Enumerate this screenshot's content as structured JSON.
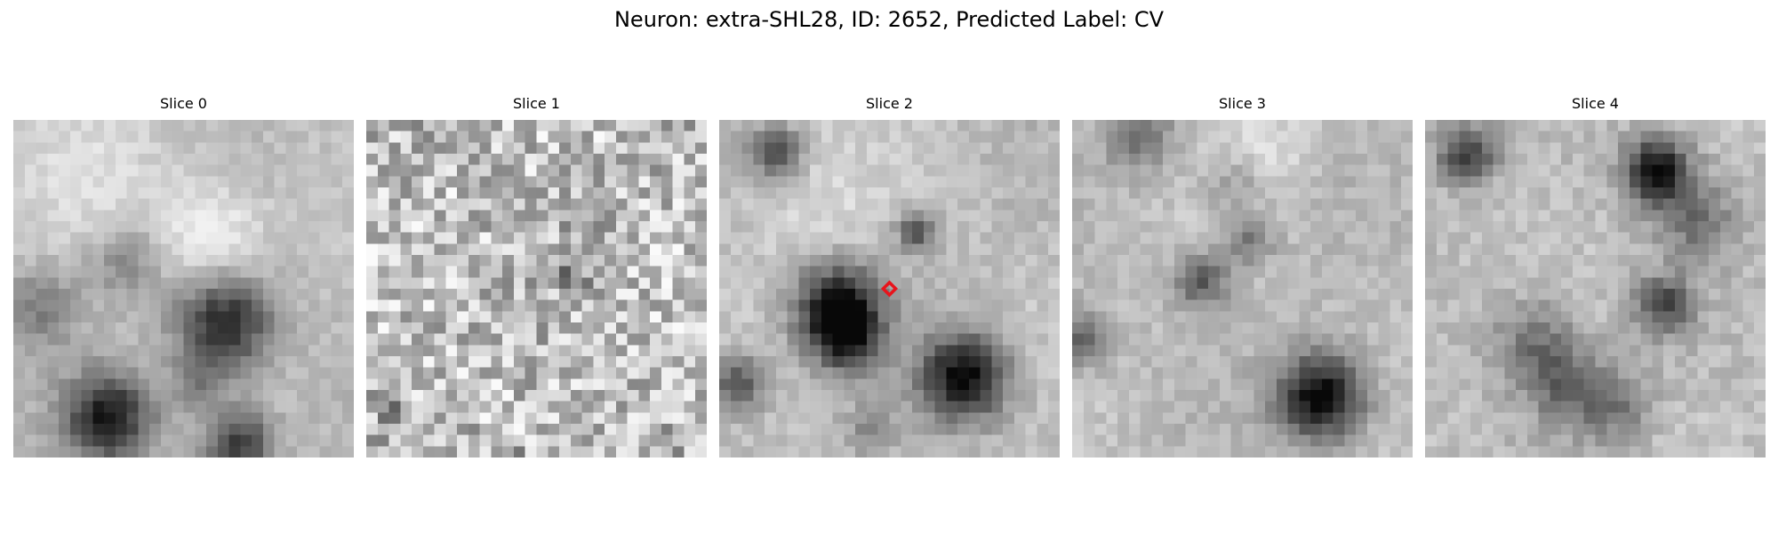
{
  "figure": {
    "title": "Neuron: extra-SHL28, ID: 2652, Predicted Label: CV"
  },
  "slices": [
    {
      "title": "Slice 0",
      "seed": 101,
      "noise": 14,
      "blobs": [
        [
          0.62,
          0.6,
          0.1,
          -155
        ],
        [
          0.28,
          0.88,
          0.09,
          -160
        ],
        [
          0.66,
          0.96,
          0.07,
          -140
        ],
        [
          0.33,
          0.42,
          0.08,
          -60
        ],
        [
          0.08,
          0.55,
          0.08,
          -65
        ],
        [
          0.55,
          0.78,
          0.06,
          -55
        ],
        [
          0.58,
          0.35,
          0.12,
          55
        ],
        [
          0.25,
          0.15,
          0.2,
          25
        ]
      ]
    },
    {
      "title": "Slice 1",
      "seed": 202,
      "noise": 60,
      "blobs": [
        [
          0.6,
          0.47,
          0.03,
          -80
        ],
        [
          0.07,
          0.85,
          0.03,
          -70
        ],
        [
          0.45,
          0.98,
          0.02,
          -70
        ]
      ]
    },
    {
      "title": "Slice 2",
      "seed": 303,
      "noise": 16,
      "marker": [
        0.5,
        0.5
      ],
      "blobs": [
        [
          0.35,
          0.55,
          0.09,
          -175
        ],
        [
          0.37,
          0.65,
          0.07,
          -110
        ],
        [
          0.72,
          0.76,
          0.09,
          -185
        ],
        [
          0.17,
          0.1,
          0.05,
          -130
        ],
        [
          0.58,
          0.33,
          0.04,
          -110
        ],
        [
          0.05,
          0.78,
          0.06,
          -110
        ],
        [
          0.45,
          0.92,
          0.05,
          -55
        ],
        [
          0.3,
          0.28,
          0.15,
          25
        ]
      ]
    },
    {
      "title": "Slice 3",
      "seed": 404,
      "noise": 16,
      "blobs": [
        [
          0.73,
          0.82,
          0.09,
          -190
        ],
        [
          0.38,
          0.48,
          0.06,
          -100
        ],
        [
          0.52,
          0.36,
          0.05,
          -70
        ],
        [
          0.2,
          0.05,
          0.07,
          -80
        ],
        [
          0.02,
          0.65,
          0.06,
          -90
        ],
        [
          0.48,
          0.18,
          0.07,
          -45
        ],
        [
          0.55,
          0.08,
          0.1,
          35
        ]
      ]
    },
    {
      "title": "Slice 4",
      "seed": 505,
      "noise": 18,
      "blobs": [
        [
          0.68,
          0.15,
          0.07,
          -175
        ],
        [
          0.12,
          0.1,
          0.06,
          -130
        ],
        [
          0.7,
          0.55,
          0.06,
          -115
        ],
        [
          0.32,
          0.65,
          0.09,
          -70
        ],
        [
          0.4,
          0.78,
          0.08,
          -75
        ],
        [
          0.8,
          0.3,
          0.08,
          -70
        ],
        [
          0.55,
          0.85,
          0.08,
          -70
        ]
      ]
    }
  ],
  "colors": {
    "background": "#ffffff",
    "marker": "#e8141c",
    "colormap": "gray"
  }
}
